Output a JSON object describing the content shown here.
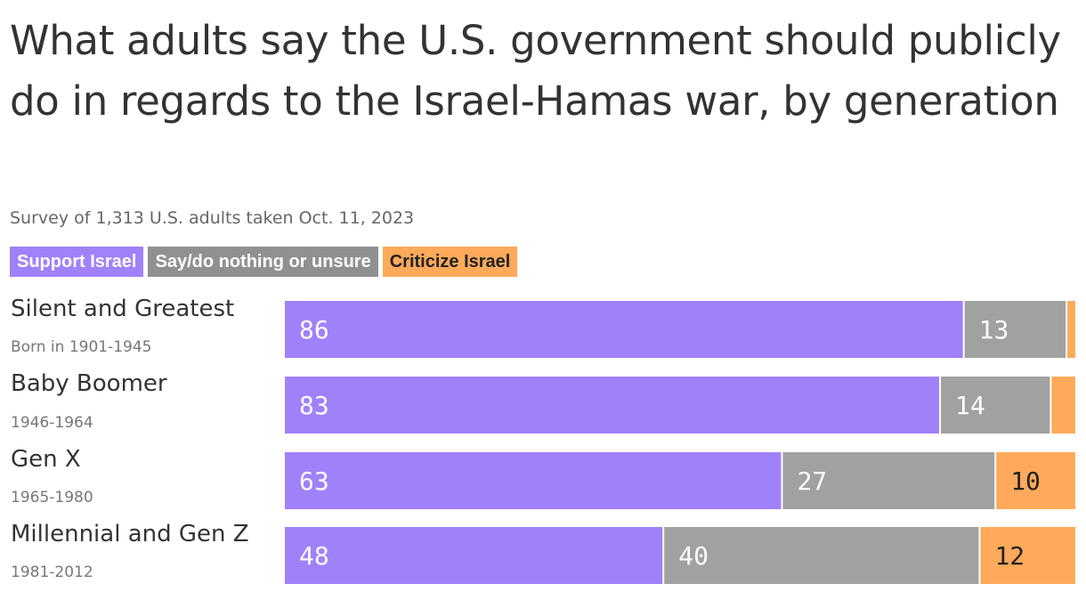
{
  "chart_data": {
    "type": "bar",
    "orientation": "horizontal",
    "stacked": true,
    "title": "What adults say the U.S. government should publicly do in regards to the Israel-Hamas war, by generation",
    "subtitle": "Survey of 1,313 U.S. adults taken Oct. 11, 2023",
    "categories": [
      "Silent and Greatest",
      "Baby Boomer",
      "Gen X",
      "Millennial and Gen Z"
    ],
    "category_subtitles": [
      "Born in 1901-1945",
      "1946-1964",
      "1965-1980",
      "1981-2012"
    ],
    "series": [
      {
        "name": "Support Israel",
        "color": "#a081fa",
        "label_color": "#ffffff",
        "values": [
          86,
          83,
          63,
          48
        ]
      },
      {
        "name": "Say/do nothing or unsure",
        "color": "#a0a1a1",
        "label_color": "#ffffff",
        "values": [
          13,
          14,
          27,
          40
        ]
      },
      {
        "name": "Criticize Israel",
        "color": "#ffaa5a",
        "label_color": "#222222",
        "values": [
          1,
          3,
          10,
          12
        ]
      }
    ],
    "xlim": [
      0,
      100
    ],
    "legend_position": "top-left"
  }
}
